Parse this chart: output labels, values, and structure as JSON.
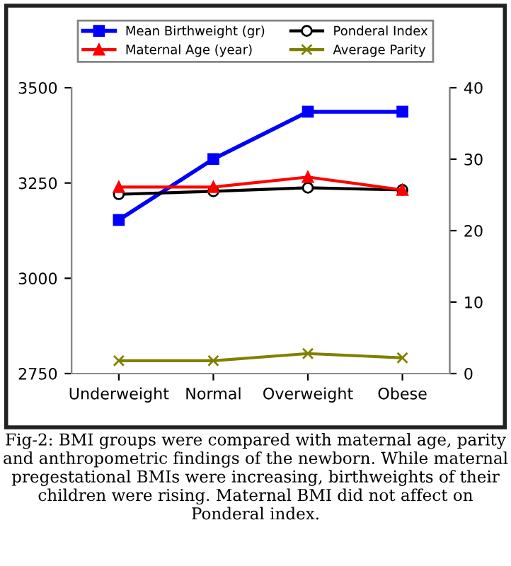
{
  "chart_data": {
    "type": "line",
    "categories": [
      "Underweight",
      "Normal",
      "Overweight",
      "Obese"
    ],
    "series": [
      {
        "name": "Mean Birthweight (gr)",
        "color": "#0000ff",
        "values": [
          3153,
          3313,
          3437,
          3437
        ],
        "marker": "square"
      },
      {
        "name": "Ponderal Index",
        "color": "#000000",
        "values": [
          25.1,
          25.5,
          26.0,
          25.7
        ],
        "axis": "y2",
        "marker": "circle"
      },
      {
        "name": "Maternal Age (year)",
        "color": "#ff0000",
        "values": [
          26.1,
          26.1,
          27.5,
          25.7
        ],
        "axis": "y2",
        "marker": "triangle"
      },
      {
        "name": "Average Parity",
        "color": "#808000",
        "values": [
          1.8,
          1.8,
          2.8,
          2.2
        ],
        "axis": "y2",
        "marker": "cross"
      }
    ],
    "ylim": [
      2750,
      3500
    ],
    "yticks": [
      2750,
      3000,
      3250,
      3500
    ],
    "y2lim": [
      0,
      40
    ],
    "y2ticks": [
      0,
      10,
      20,
      30,
      40
    ],
    "legend": "top",
    "grid": false,
    "annotations": [
      "Fig-2: BMI groups were compared with maternal age, parity and anthropometric findings of the newborn. While maternal pregestational BMIs were increasing, birthweights of their children were rising. Maternal BMI did not affect on Ponderal index."
    ]
  }
}
